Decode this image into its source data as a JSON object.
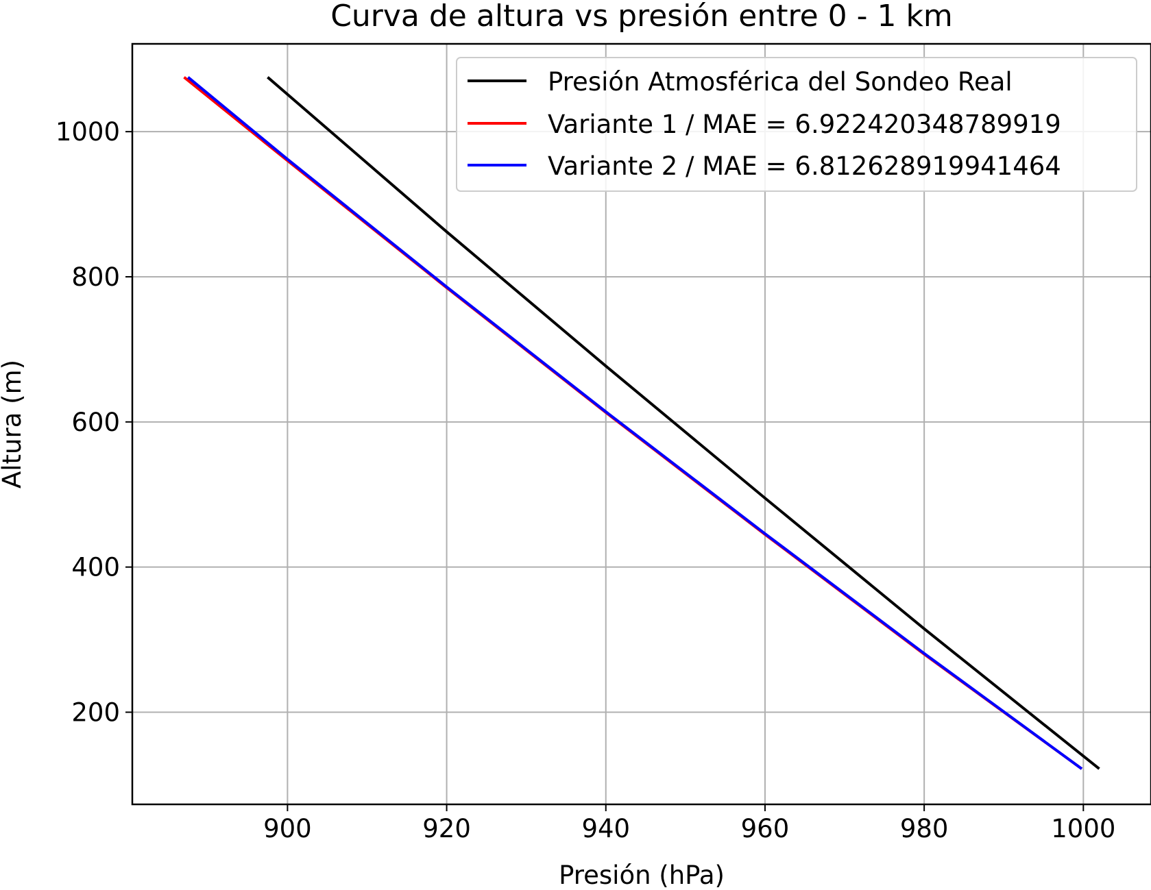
{
  "chart_data": {
    "type": "line",
    "title": "Curva de altura vs presión entre 0 - 1 km",
    "xlabel": "Presión (hPa)",
    "ylabel": "Altura (m)",
    "xlim": [
      880.5,
      1008.5
    ],
    "ylim": [
      73,
      1121
    ],
    "xticks": [
      900,
      920,
      940,
      960,
      980,
      1000
    ],
    "yticks": [
      200,
      400,
      600,
      800,
      1000
    ],
    "grid": true,
    "legend_position": "top-right",
    "series": [
      {
        "name": "Presión Atmosférica del Sondeo Real",
        "color": "#000000",
        "x": [
          897.5,
          920.0,
          940.0,
          960.0,
          980.0,
          1002.0
        ],
        "y": [
          1075,
          862,
          677,
          495,
          315,
          122
        ]
      },
      {
        "name": "Variante 1 / MAE = 6.922420348789919",
        "color": "#ff0000",
        "x": [
          887.0,
          900.0,
          920.0,
          940.0,
          960.0,
          980.0,
          999.8
        ],
        "y": [
          1075,
          960,
          785,
          613,
          445,
          280,
          122
        ]
      },
      {
        "name": "Variante 2 / MAE = 6.812628919941464",
        "color": "#0000ff",
        "x": [
          887.5,
          900.0,
          920.0,
          940.0,
          960.0,
          980.0,
          999.8
        ],
        "y": [
          1075,
          962,
          786,
          614,
          446,
          281,
          122
        ]
      }
    ]
  }
}
